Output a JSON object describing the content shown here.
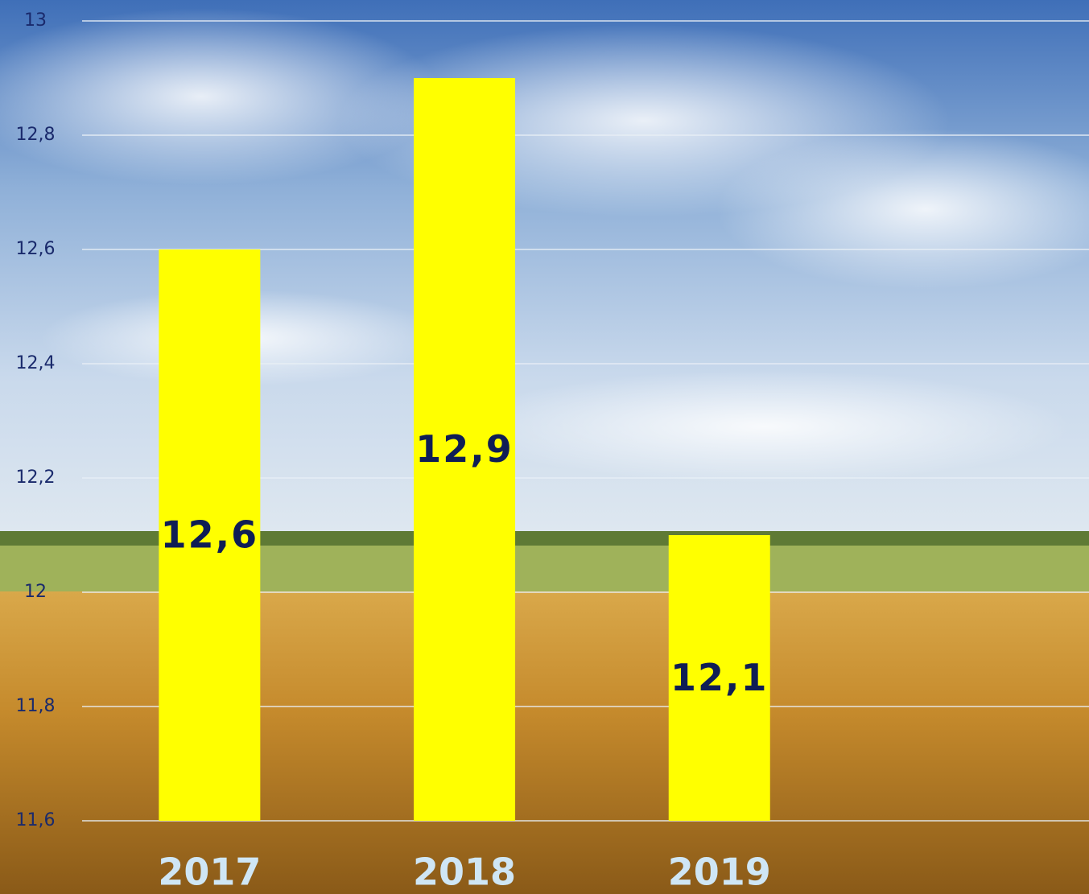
{
  "chart_data": {
    "type": "bar",
    "categories": [
      "2017",
      "2018",
      "2019"
    ],
    "values": [
      12.6,
      12.9,
      12.1
    ],
    "value_labels": [
      "12,6",
      "12,9",
      "12,1"
    ],
    "color": "#ffff00",
    "ylim": [
      11.6,
      13
    ],
    "yticks": [
      {
        "value": 11.6,
        "label": "11,6"
      },
      {
        "value": 11.8,
        "label": "11,8"
      },
      12,
      {
        "value": 12.2,
        "label": "12,2"
      },
      {
        "value": 12.4,
        "label": "12,4"
      },
      {
        "value": 12.6,
        "label": "12,6"
      },
      {
        "value": 12.8,
        "label": "12,8"
      },
      13
    ],
    "grid": true
  }
}
